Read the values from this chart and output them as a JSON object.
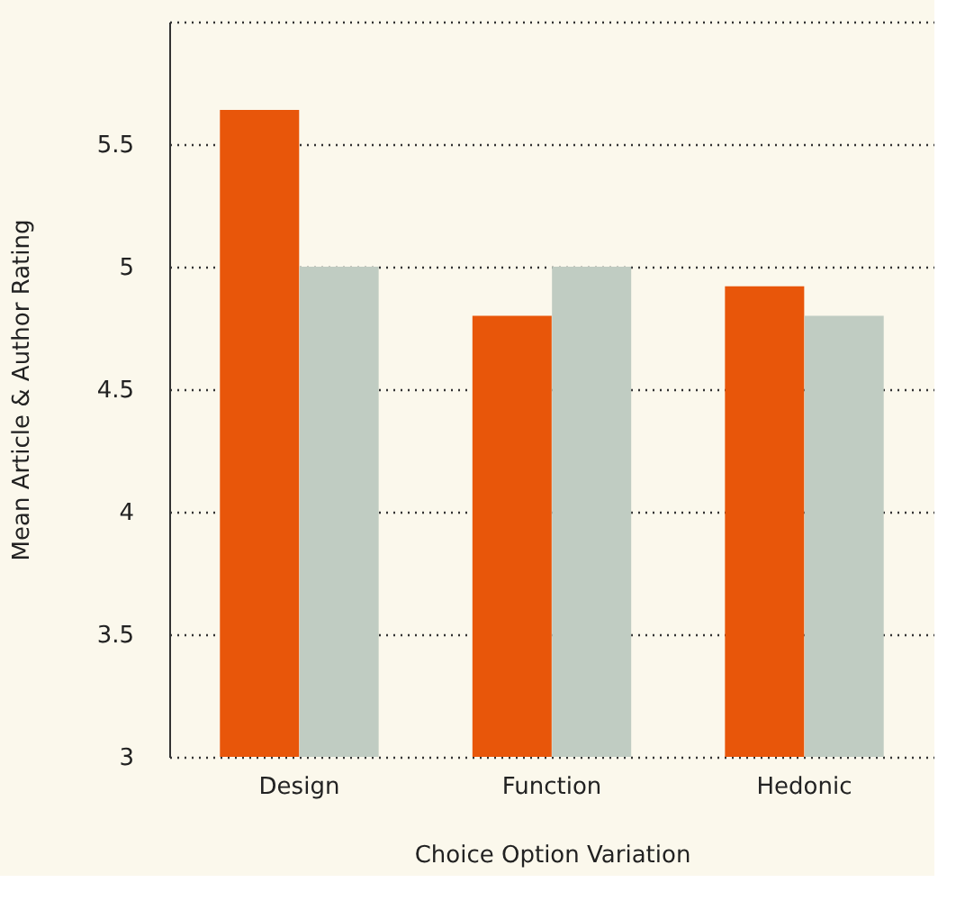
{
  "chart_data": {
    "type": "bar",
    "xlabel": "Choice Option Variation",
    "ylabel": "Mean Article & Author Rating",
    "categories": [
      "Design",
      "Function",
      "Hedonic"
    ],
    "series": [
      {
        "color": "#e8560a",
        "values": [
          5.64,
          4.8,
          4.92
        ]
      },
      {
        "color": "#c0ccc2",
        "values": [
          5.0,
          5.0,
          4.8
        ]
      }
    ],
    "ylim": [
      3,
      6
    ],
    "yticks": [
      3,
      3.5,
      4,
      4.5,
      5,
      5.5,
      {
        "value": 6,
        "label": null
      }
    ],
    "grid": "y"
  }
}
